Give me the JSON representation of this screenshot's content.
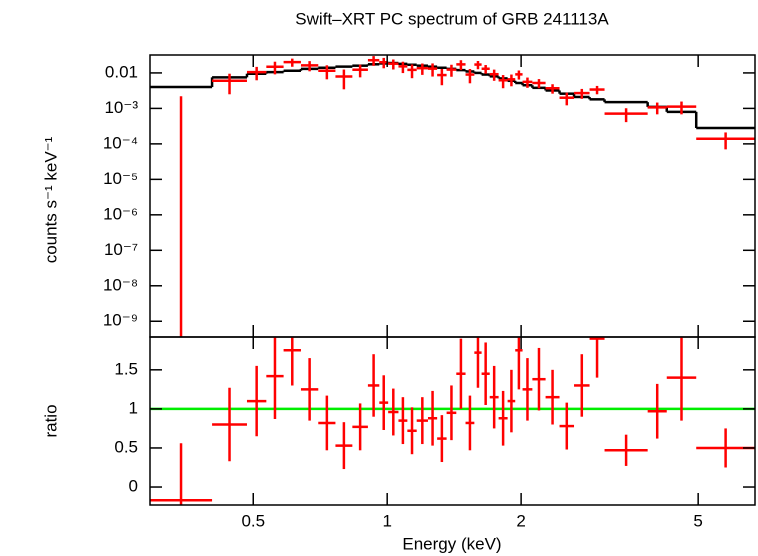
{
  "chart_data": {
    "type": "spectrum",
    "title": "Swift–XRT PC spectrum of GRB 241113A",
    "xlabel": "Energy (keV)",
    "log_x": true,
    "xlim": [
      0.293,
      6.71
    ],
    "xticks": [
      0.5,
      1,
      2,
      5
    ],
    "color": "#ff0000",
    "model_color": "#000000",
    "bins": [
      0.293,
      0.404,
      0.484,
      0.535,
      0.585,
      0.64,
      0.7,
      0.765,
      0.835,
      0.905,
      0.96,
      1.005,
      1.06,
      1.11,
      1.165,
      1.235,
      1.295,
      1.36,
      1.43,
      1.5,
      1.57,
      1.63,
      1.7,
      1.78,
      1.865,
      1.94,
      2.015,
      2.12,
      2.27,
      2.44,
      2.63,
      2.85,
      3.08,
      3.85,
      4.25,
      4.95,
      6.71
    ],
    "panels": [
      {
        "ylabel": "counts s⁻¹ keV⁻¹",
        "log_y": true,
        "ylim": [
          3.6e-10,
          0.032
        ],
        "yticks": [
          0.01,
          {
            "value": 0.001,
            "label": "10⁻³"
          },
          {
            "value": 0.0001,
            "label": "10⁻⁴"
          },
          {
            "value": 1e-05,
            "label": "10⁻⁵"
          },
          {
            "value": 1e-06,
            "label": "10⁻⁶"
          },
          {
            "value": 1e-07,
            "label": "10⁻⁷"
          },
          {
            "value": 1e-08,
            "label": "10⁻⁸"
          },
          {
            "value": 1e-09,
            "label": "10⁻⁹"
          }
        ],
        "values": [
          -0.0007,
          0.006,
          0.0105,
          0.0149,
          0.0201,
          0.0163,
          0.0115,
          0.00795,
          0.0123,
          0.0228,
          0.02,
          0.0182,
          0.0153,
          0.0122,
          0.0136,
          0.0132,
          0.0087,
          0.0124,
          0.0174,
          0.009,
          0.0172,
          0.0131,
          0.0092,
          0.0062,
          0.0066,
          0.0091,
          0.0056,
          0.0052,
          0.0037,
          0.002,
          0.0027,
          0.0034,
          0.00071,
          0.00107,
          0.00112,
          0.00014
        ],
        "errors": [
          0.0029,
          0.0035,
          0.0043,
          0.0058,
          0.0052,
          0.0052,
          0.0049,
          0.0045,
          0.0048,
          0.007,
          0.0065,
          0.0057,
          0.0054,
          0.0051,
          0.0048,
          0.0053,
          0.0042,
          0.0046,
          0.0054,
          0.0039,
          0.0045,
          0.0036,
          0.0032,
          0.0025,
          0.0024,
          0.0026,
          0.0018,
          0.0015,
          0.0011,
          0.00078,
          0.00084,
          0.0009,
          0.0003,
          0.00039,
          0.00044,
          7e-05
        ],
        "model": [
          0.004,
          0.0075,
          0.0095,
          0.0105,
          0.0115,
          0.013,
          0.014,
          0.015,
          0.016,
          0.0175,
          0.0185,
          0.019,
          0.018,
          0.017,
          0.016,
          0.015,
          0.014,
          0.013,
          0.012,
          0.011,
          0.01,
          0.009,
          0.008,
          0.007,
          0.006,
          0.0052,
          0.0045,
          0.0038,
          0.0032,
          0.0026,
          0.0021,
          0.0018,
          0.0015,
          0.0011,
          0.0008,
          0.00028
        ]
      },
      {
        "ylabel": "ratio",
        "log_y": false,
        "ylim": [
          -0.23,
          1.92
        ],
        "yticks": [
          0,
          0.5,
          1,
          1.5
        ],
        "values": [
          -0.17,
          0.8,
          1.1,
          1.42,
          1.75,
          1.25,
          0.82,
          0.53,
          0.77,
          1.3,
          1.08,
          0.96,
          0.85,
          0.72,
          0.85,
          0.88,
          0.62,
          0.95,
          1.45,
          0.82,
          1.72,
          1.45,
          1.15,
          0.88,
          1.1,
          1.75,
          1.25,
          1.38,
          1.15,
          0.78,
          1.3,
          1.9,
          0.47,
          0.97,
          1.4,
          0.5
        ],
        "errors": [
          0.73,
          0.47,
          0.45,
          0.55,
          0.45,
          0.4,
          0.35,
          0.3,
          0.3,
          0.4,
          0.35,
          0.3,
          0.3,
          0.3,
          0.3,
          0.35,
          0.3,
          0.35,
          0.45,
          0.35,
          0.45,
          0.4,
          0.4,
          0.35,
          0.4,
          0.5,
          0.4,
          0.4,
          0.35,
          0.3,
          0.4,
          0.5,
          0.2,
          0.35,
          0.55,
          0.25
        ],
        "reference": 1,
        "reference_color": "#00ee00"
      }
    ]
  }
}
